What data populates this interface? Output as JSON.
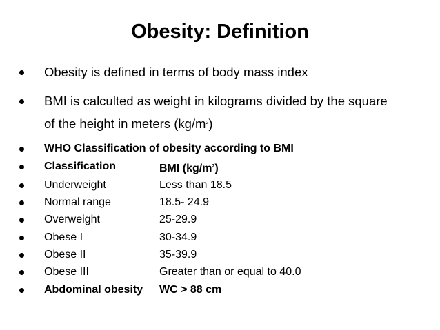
{
  "title": "Obesity: Definition",
  "bullets": [
    {
      "text": "Obesity is defined in terms of body mass index"
    },
    {
      "line1": "BMI is calculted as weight in kilograms divided by the square",
      "line2_pre": "of the height in meters (kg/m",
      "line2_sup": "2",
      "line2_post": ")"
    },
    {
      "text": "WHO Classification of obesity according to BMI"
    }
  ],
  "table": {
    "header": {
      "label": "Classification",
      "value_pre": "BMI (kg/m",
      "value_sup": "2",
      "value_post": ")"
    },
    "rows": [
      {
        "label": "Underweight",
        "value": "Less than 18.5"
      },
      {
        "label": "Normal range",
        "value": "18.5- 24.9"
      },
      {
        "label": "Overweight",
        "value": "25-29.9"
      },
      {
        "label": "Obese I",
        "value": "30-34.9"
      },
      {
        "label": "Obese II",
        "value": "35-39.9"
      },
      {
        "label": "Obese III",
        "value": "Greater than or equal to 40.0"
      }
    ],
    "footer": {
      "label": "Abdominal obesity",
      "value": "WC > 88 cm"
    }
  }
}
